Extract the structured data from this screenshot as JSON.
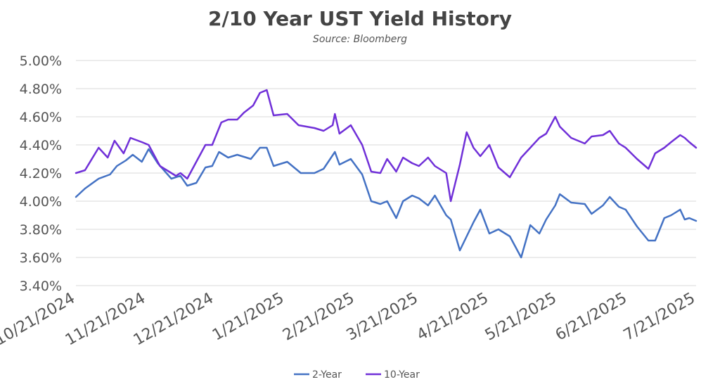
{
  "chart_data": {
    "type": "line",
    "title": "2/10 Year UST Yield History",
    "subtitle": "Source: Bloomberg",
    "xlabel": "",
    "ylabel": "",
    "x_start": "10/21/2024",
    "x_end": "7/21/2025",
    "x_ticks": [
      "10/21/2024",
      "11/21/2024",
      "12/21/2024",
      "1/21/2025",
      "2/21/2025",
      "3/21/2025",
      "4/21/2025",
      "5/21/2025",
      "6/21/2025",
      "7/21/2025"
    ],
    "ylim": [
      3.4,
      5.0
    ],
    "y_ticks": [
      "3.40%",
      "3.60%",
      "3.80%",
      "4.00%",
      "4.20%",
      "4.40%",
      "4.60%",
      "4.80%",
      "5.00%"
    ],
    "grid": true,
    "legend_position": "bottom",
    "series": [
      {
        "name": "2-Year",
        "color": "#4472C4",
        "points": [
          [
            "10/21/2024",
            4.03
          ],
          [
            "10/25/2024",
            4.09
          ],
          [
            "10/31/2024",
            4.16
          ],
          [
            "11/5/2024",
            4.19
          ],
          [
            "11/8/2024",
            4.25
          ],
          [
            "11/12/2024",
            4.29
          ],
          [
            "11/15/2024",
            4.33
          ],
          [
            "11/19/2024",
            4.28
          ],
          [
            "11/22/2024",
            4.37
          ],
          [
            "11/26/2024",
            4.27
          ],
          [
            "12/2/2024",
            4.16
          ],
          [
            "12/6/2024",
            4.18
          ],
          [
            "12/9/2024",
            4.11
          ],
          [
            "12/13/2024",
            4.13
          ],
          [
            "12/17/2024",
            4.24
          ],
          [
            "12/20/2024",
            4.25
          ],
          [
            "12/23/2024",
            4.35
          ],
          [
            "12/27/2024",
            4.31
          ],
          [
            "12/31/2024",
            4.33
          ],
          [
            "1/6/2025",
            4.3
          ],
          [
            "1/10/2025",
            4.38
          ],
          [
            "1/13/2025",
            4.38
          ],
          [
            "1/16/2025",
            4.25
          ],
          [
            "1/22/2025",
            4.28
          ],
          [
            "1/28/2025",
            4.2
          ],
          [
            "2/3/2025",
            4.2
          ],
          [
            "2/7/2025",
            4.23
          ],
          [
            "2/12/2025",
            4.35
          ],
          [
            "2/14/2025",
            4.26
          ],
          [
            "2/19/2025",
            4.3
          ],
          [
            "2/24/2025",
            4.19
          ],
          [
            "2/28/2025",
            4.0
          ],
          [
            "3/4/2025",
            3.98
          ],
          [
            "3/7/2025",
            4.0
          ],
          [
            "3/11/2025",
            3.88
          ],
          [
            "3/14/2025",
            4.0
          ],
          [
            "3/18/2025",
            4.04
          ],
          [
            "3/21/2025",
            4.02
          ],
          [
            "3/25/2025",
            3.97
          ],
          [
            "3/28/2025",
            4.04
          ],
          [
            "4/2/2025",
            3.9
          ],
          [
            "4/4/2025",
            3.87
          ],
          [
            "4/8/2025",
            3.65
          ],
          [
            "4/11/2025",
            3.75
          ],
          [
            "4/14/2025",
            3.85
          ],
          [
            "4/17/2025",
            3.94
          ],
          [
            "4/21/2025",
            3.77
          ],
          [
            "4/25/2025",
            3.8
          ],
          [
            "4/30/2025",
            3.75
          ],
          [
            "5/5/2025",
            3.6
          ],
          [
            "5/9/2025",
            3.83
          ],
          [
            "5/13/2025",
            3.77
          ],
          [
            "5/16/2025",
            3.87
          ],
          [
            "5/20/2025",
            3.97
          ],
          [
            "5/22/2025",
            4.05
          ],
          [
            "5/27/2025",
            3.99
          ],
          [
            "6/2/2025",
            3.98
          ],
          [
            "6/5/2025",
            3.91
          ],
          [
            "6/10/2025",
            3.97
          ],
          [
            "6/13/2025",
            4.03
          ],
          [
            "6/17/2025",
            3.96
          ],
          [
            "6/20/2025",
            3.94
          ],
          [
            "6/25/2025",
            3.82
          ],
          [
            "6/30/2025",
            3.72
          ],
          [
            "7/3/2025",
            3.72
          ],
          [
            "7/7/2025",
            3.88
          ],
          [
            "7/10/2025",
            3.9
          ],
          [
            "7/14/2025",
            3.94
          ],
          [
            "7/16/2025",
            3.87
          ],
          [
            "7/18/2025",
            3.88
          ],
          [
            "7/21/2025",
            3.86
          ]
        ]
      },
      {
        "name": "10-Year",
        "color": "#7030D8",
        "points": [
          [
            "10/21/2024",
            4.2
          ],
          [
            "10/25/2024",
            4.22
          ],
          [
            "10/31/2024",
            4.38
          ],
          [
            "11/4/2024",
            4.31
          ],
          [
            "11/7/2024",
            4.43
          ],
          [
            "11/11/2024",
            4.34
          ],
          [
            "11/14/2024",
            4.45
          ],
          [
            "11/19/2024",
            4.42
          ],
          [
            "11/22/2024",
            4.4
          ],
          [
            "11/27/2024",
            4.25
          ],
          [
            "12/4/2024",
            4.18
          ],
          [
            "12/6/2024",
            4.2
          ],
          [
            "12/9/2024",
            4.16
          ],
          [
            "12/13/2024",
            4.28
          ],
          [
            "12/17/2024",
            4.4
          ],
          [
            "12/20/2024",
            4.4
          ],
          [
            "12/24/2024",
            4.56
          ],
          [
            "12/27/2024",
            4.58
          ],
          [
            "12/31/2024",
            4.58
          ],
          [
            "1/3/2025",
            4.63
          ],
          [
            "1/7/2025",
            4.68
          ],
          [
            "1/10/2025",
            4.77
          ],
          [
            "1/13/2025",
            4.79
          ],
          [
            "1/16/2025",
            4.61
          ],
          [
            "1/22/2025",
            4.62
          ],
          [
            "1/27/2025",
            4.54
          ],
          [
            "2/3/2025",
            4.52
          ],
          [
            "2/7/2025",
            4.5
          ],
          [
            "2/11/2025",
            4.54
          ],
          [
            "2/12/2025",
            4.62
          ],
          [
            "2/14/2025",
            4.48
          ],
          [
            "2/19/2025",
            4.54
          ],
          [
            "2/24/2025",
            4.4
          ],
          [
            "2/28/2025",
            4.21
          ],
          [
            "3/4/2025",
            4.2
          ],
          [
            "3/7/2025",
            4.3
          ],
          [
            "3/11/2025",
            4.21
          ],
          [
            "3/14/2025",
            4.31
          ],
          [
            "3/18/2025",
            4.27
          ],
          [
            "3/21/2025",
            4.25
          ],
          [
            "3/25/2025",
            4.31
          ],
          [
            "3/28/2025",
            4.25
          ],
          [
            "4/2/2025",
            4.2
          ],
          [
            "4/4/2025",
            4.0
          ],
          [
            "4/8/2025",
            4.26
          ],
          [
            "4/11/2025",
            4.49
          ],
          [
            "4/14/2025",
            4.38
          ],
          [
            "4/17/2025",
            4.32
          ],
          [
            "4/21/2025",
            4.4
          ],
          [
            "4/25/2025",
            4.24
          ],
          [
            "4/30/2025",
            4.17
          ],
          [
            "5/5/2025",
            4.31
          ],
          [
            "5/9/2025",
            4.38
          ],
          [
            "5/13/2025",
            4.45
          ],
          [
            "5/16/2025",
            4.48
          ],
          [
            "5/20/2025",
            4.6
          ],
          [
            "5/22/2025",
            4.53
          ],
          [
            "5/27/2025",
            4.45
          ],
          [
            "6/2/2025",
            4.41
          ],
          [
            "6/5/2025",
            4.46
          ],
          [
            "6/10/2025",
            4.47
          ],
          [
            "6/13/2025",
            4.5
          ],
          [
            "6/17/2025",
            4.41
          ],
          [
            "6/20/2025",
            4.38
          ],
          [
            "6/25/2025",
            4.3
          ],
          [
            "6/30/2025",
            4.23
          ],
          [
            "7/3/2025",
            4.34
          ],
          [
            "7/7/2025",
            4.38
          ],
          [
            "7/10/2025",
            4.42
          ],
          [
            "7/14/2025",
            4.47
          ],
          [
            "7/16/2025",
            4.45
          ],
          [
            "7/18/2025",
            4.42
          ],
          [
            "7/21/2025",
            4.38
          ]
        ]
      }
    ]
  }
}
